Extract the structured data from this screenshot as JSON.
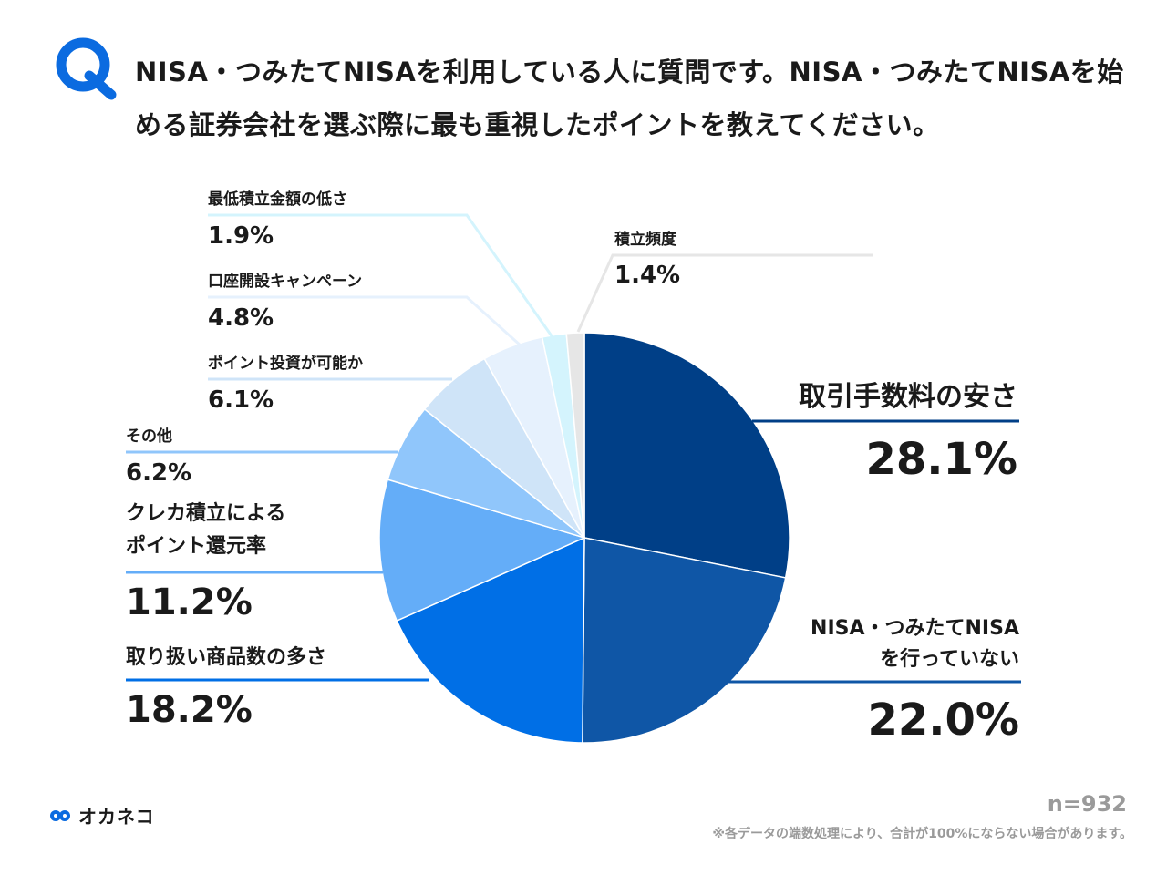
{
  "question_mark": "Q",
  "title": "NISA・つみたてNISAを利用している人に質問です。NISA・つみたてNISAを始める証券会社を選ぶ際に最も重視したポイントを教えてください。",
  "chart_data": {
    "type": "pie",
    "start_angle_deg": 0,
    "direction": "clockwise",
    "slices": [
      {
        "label": "取引手数料の安さ",
        "value": 28.1,
        "display": "28.1%",
        "color": "#003f87"
      },
      {
        "label": "NISA・つみたてNISAを行っていない",
        "value": 22.0,
        "display": "22.0%",
        "color": "#0f56a6"
      },
      {
        "label": "取り扱い商品数の多さ",
        "value": 18.2,
        "display": "18.2%",
        "color": "#006fe6"
      },
      {
        "label": "クレカ積立によるポイント還元率",
        "value": 11.2,
        "display": "11.2%",
        "color": "#64adf8"
      },
      {
        "label": "その他",
        "value": 6.2,
        "display": "6.2%",
        "color": "#90c6fb"
      },
      {
        "label": "ポイント投資が可能か",
        "value": 6.1,
        "display": "6.1%",
        "color": "#cfe4f8"
      },
      {
        "label": "口座開設キャンペーン",
        "value": 4.8,
        "display": "4.8%",
        "color": "#e6f1fd"
      },
      {
        "label": "最低積立金額の低さ",
        "value": 1.9,
        "display": "1.9%",
        "color": "#d4f4fd"
      },
      {
        "label": "積立頻度",
        "value": 1.4,
        "display": "1.4%",
        "color": "#e6e6e6"
      }
    ]
  },
  "labels": {
    "fee": {
      "name": "取引手数料の安さ",
      "value": "28.1%"
    },
    "not_using": {
      "name1": "NISA・つみたてNISA",
      "name2": "を行っていない",
      "value": "22.0%"
    },
    "products": {
      "name": "取り扱い商品数の多さ",
      "value": "18.2%"
    },
    "credit": {
      "name1": "クレカ積立による",
      "name2": "ポイント還元率",
      "value": "11.2%"
    },
    "other": {
      "name": "その他",
      "value": "6.2%"
    },
    "point_invest": {
      "name": "ポイント投資が可能か",
      "value": "6.1%"
    },
    "campaign": {
      "name": "口座開設キャンペーン",
      "value": "4.8%"
    },
    "min_amount": {
      "name": "最低積立金額の低さ",
      "value": "1.9%"
    },
    "frequency": {
      "name": "積立頻度",
      "value": "1.4%"
    }
  },
  "footer": {
    "logo_text": "オカネコ",
    "sample_size": "n=932",
    "note": "※各データの端数処理により、合計が100%にならない場合があります。"
  }
}
